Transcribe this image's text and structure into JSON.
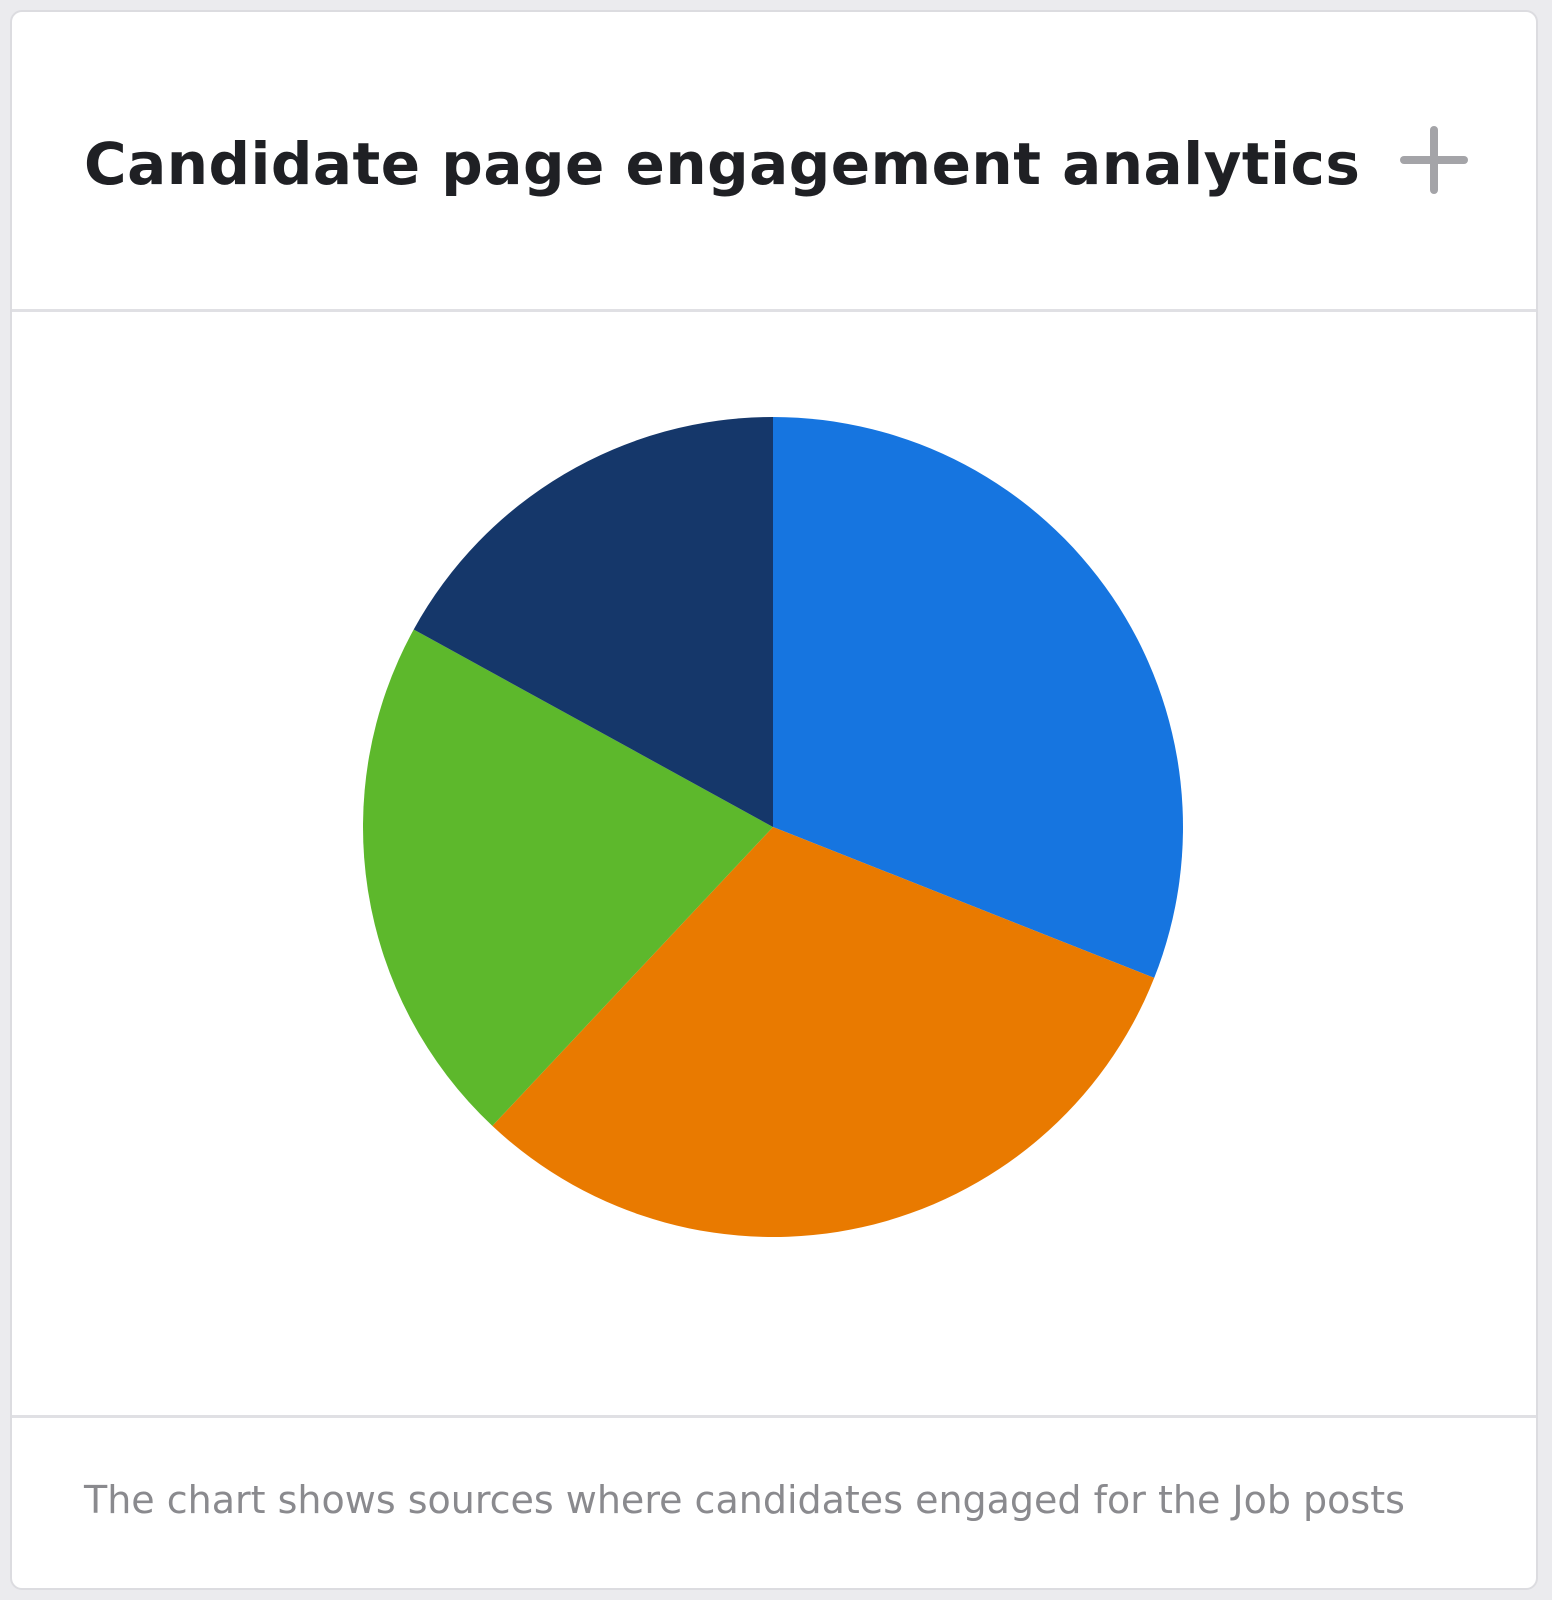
{
  "card": {
    "title": "Candidate page engagement analytics",
    "add_icon": "plus-icon",
    "description": "The chart shows sources where candidates engaged for the Job posts"
  },
  "chart_data": {
    "type": "pie",
    "title": "",
    "start_angle": "12 o'clock",
    "direction": "clockwise",
    "slices": [
      {
        "value": 31,
        "color": "#1675e0"
      },
      {
        "value": 31,
        "color": "#e97a00"
      },
      {
        "value": 21,
        "color": "#5db82c"
      },
      {
        "value": 17,
        "color": "#15376a"
      }
    ]
  }
}
